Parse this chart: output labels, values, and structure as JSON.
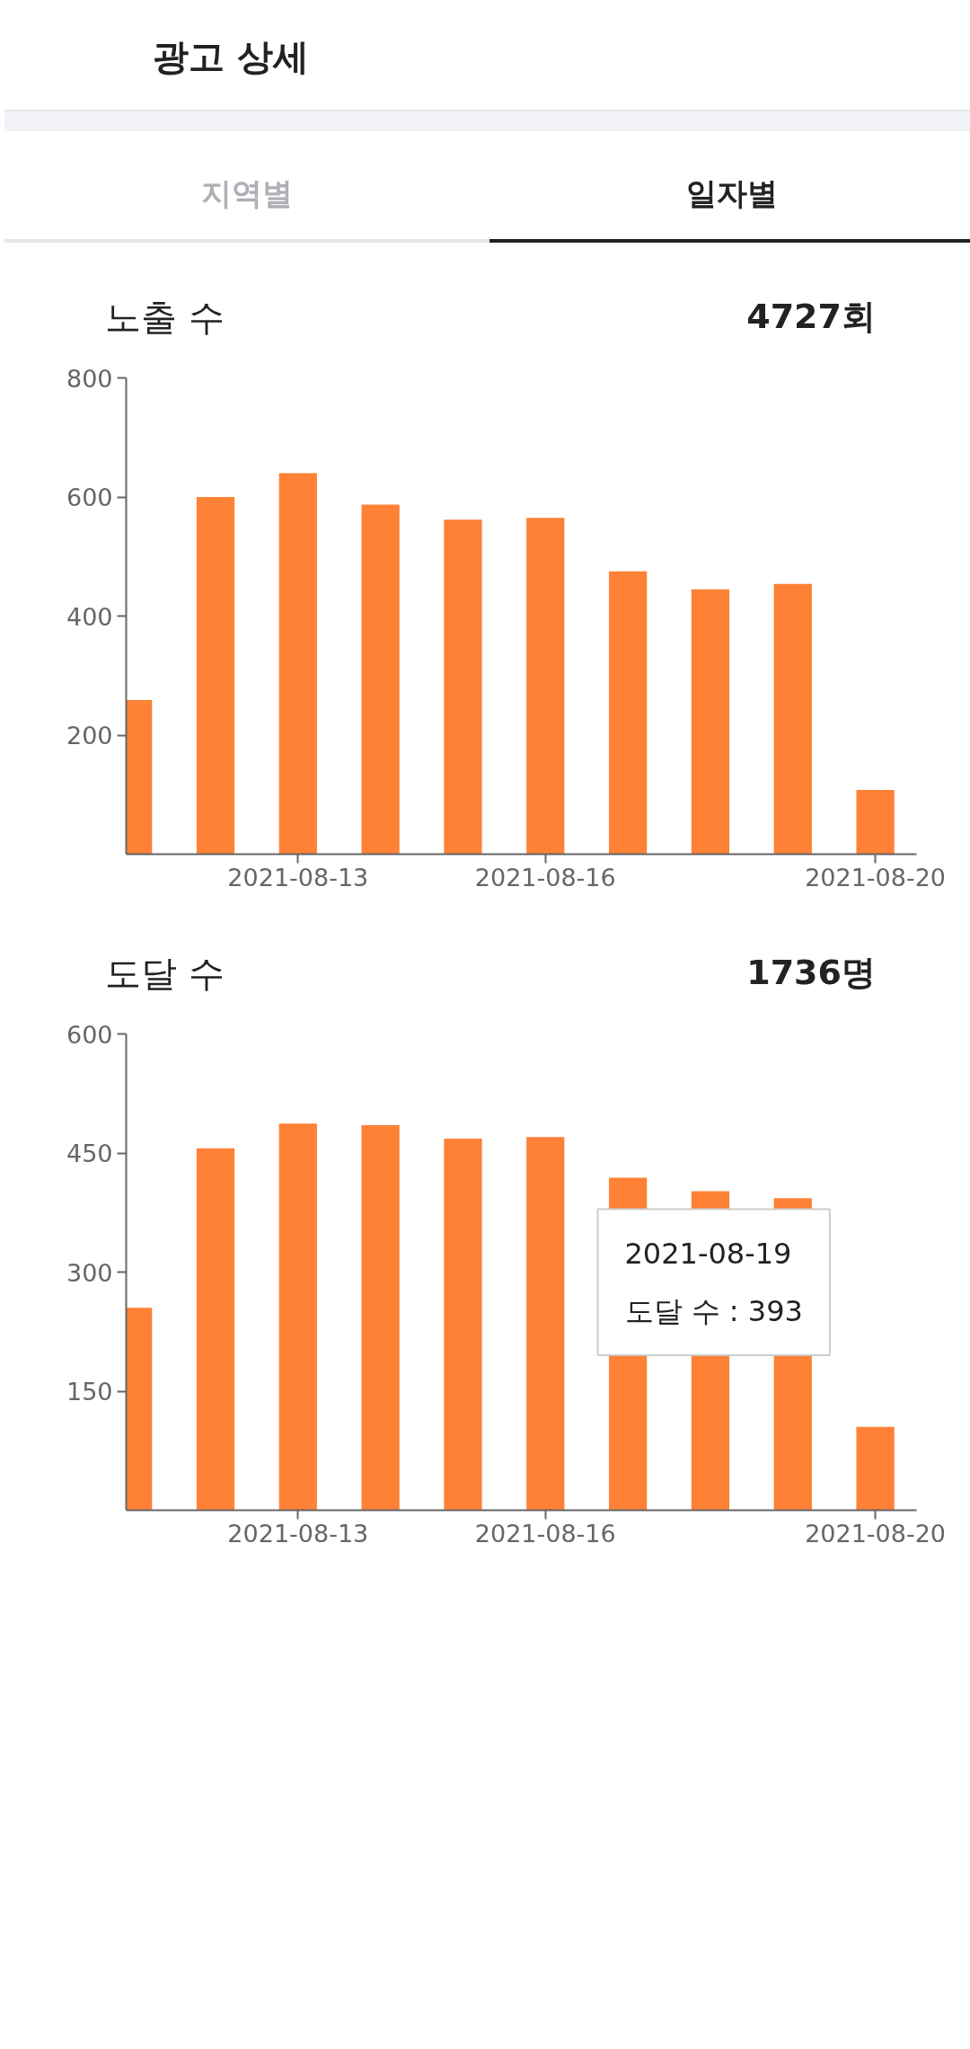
{
  "chart_data": [
    {
      "type": "bar",
      "title": "노출 수",
      "annotations": [
        "광고 상세",
        "지역별",
        "일자별",
        "4727회"
      ],
      "x": [
        "2021-08-11",
        "2021-08-12",
        "2021-08-13",
        "2021-08-14",
        "2021-08-15",
        "2021-08-16",
        "2021-08-17",
        "2021-08-18",
        "2021-08-19",
        "2021-08-20"
      ],
      "values": [
        259,
        600,
        640,
        587,
        562,
        565,
        475,
        445,
        454,
        108
      ],
      "color": "#fe8136",
      "xlim": [
        "2021-08-10T22:00",
        "2021-08-20T12:00"
      ],
      "xticks": [
        "2021-08-13",
        "2021-08-16",
        "2021-08-20"
      ],
      "ylim": [
        0,
        800
      ],
      "yticks": [
        200,
        400,
        600,
        800
      ],
      "grid": false
    },
    {
      "type": "bar",
      "title": "도달 수",
      "annotations": [
        "2021-08-19\n도달 수 : 393",
        "1736명"
      ],
      "x": [
        "2021-08-11",
        "2021-08-12",
        "2021-08-13",
        "2021-08-14",
        "2021-08-15",
        "2021-08-16",
        "2021-08-17",
        "2021-08-18",
        "2021-08-19",
        "2021-08-20"
      ],
      "values": [
        255,
        456,
        487,
        485,
        468,
        470,
        419,
        402,
        393,
        105
      ],
      "color": "#fe8136",
      "xlim": [
        "2021-08-10T22:00",
        "2021-08-20T12:00"
      ],
      "xticks": [
        "2021-08-13",
        "2021-08-16",
        "2021-08-20"
      ],
      "ylim": [
        0,
        600
      ],
      "yticks": [
        150,
        300,
        450,
        600
      ],
      "grid": false
    }
  ]
}
